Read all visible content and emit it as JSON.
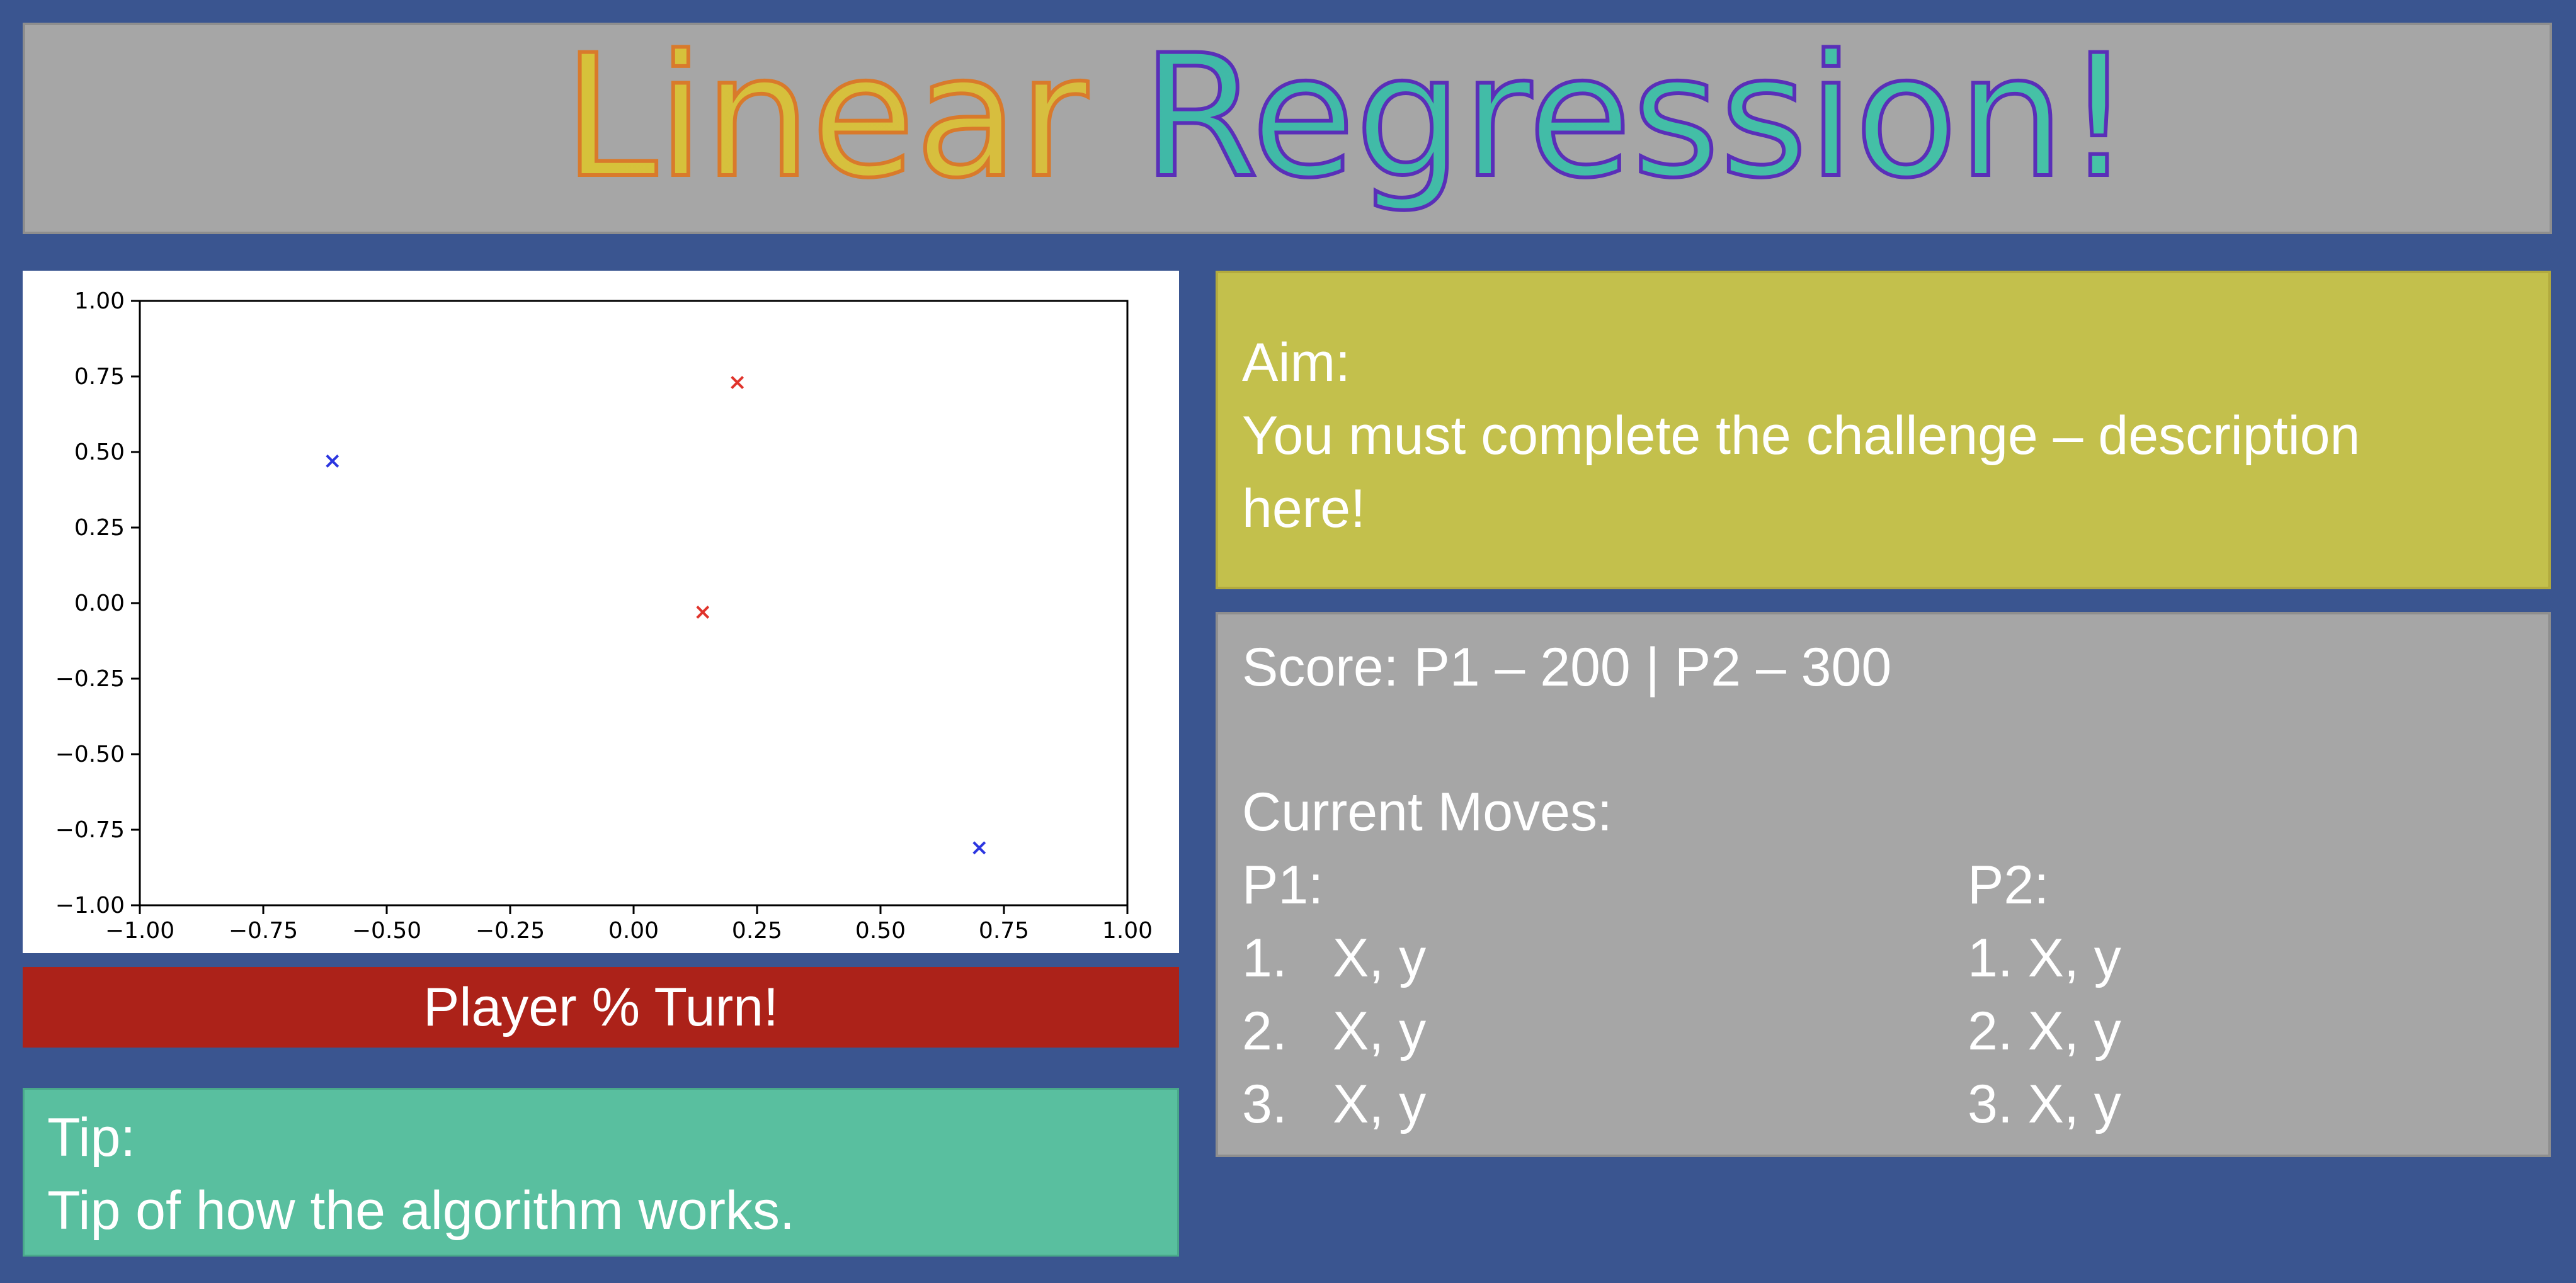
{
  "title": {
    "word1": "Linear",
    "word2": "Regression!"
  },
  "chart_data": {
    "type": "scatter",
    "xlim": [
      -1.0,
      1.0
    ],
    "ylim": [
      -1.0,
      1.0
    ],
    "x_ticks": [
      "−1.00",
      "−0.75",
      "−0.50",
      "−0.25",
      "0.00",
      "0.25",
      "0.50",
      "0.75",
      "1.00"
    ],
    "y_ticks": [
      "1.00",
      "0.75",
      "0.50",
      "0.25",
      "0.00",
      "−0.25",
      "−0.50",
      "−0.75",
      "−1.00"
    ],
    "series": [
      {
        "color": "#e0332b",
        "marker": "x",
        "points": [
          {
            "x": 0.21,
            "y": 0.73
          },
          {
            "x": 0.14,
            "y": -0.03
          }
        ]
      },
      {
        "color": "#2b35e0",
        "marker": "x",
        "points": [
          {
            "x": -0.61,
            "y": 0.47
          },
          {
            "x": 0.7,
            "y": -0.81
          }
        ]
      }
    ]
  },
  "turn_banner": "Player % Turn!",
  "tip": {
    "heading": "Tip:",
    "text": "Tip of how the algorithm works."
  },
  "aim": {
    "heading": "Aim:",
    "line1": "You must complete the challenge – description",
    "line2": "here!"
  },
  "score": {
    "text": "Score: P1 – 200 | P2 – 300",
    "moves_heading": "Current Moves:",
    "p1": {
      "label": "P1:",
      "moves": [
        {
          "num": "1.",
          "text": "X, y"
        },
        {
          "num": "2.",
          "text": "X, y"
        },
        {
          "num": "3.",
          "text": "X, y"
        }
      ]
    },
    "p2": {
      "label": "P2:",
      "moves": [
        {
          "num": "1.",
          "text": "X, y"
        },
        {
          "num": "2.",
          "text": "X, y"
        },
        {
          "num": "3.",
          "text": "X, y"
        }
      ]
    }
  },
  "colors": {
    "background": "#3a5590",
    "title_panel": "#a6a6a6",
    "aim_panel": "#c3c04c",
    "score_panel": "#a6a6a6",
    "tip_panel": "#59bf9f",
    "turn_banner": "#ac2219"
  }
}
